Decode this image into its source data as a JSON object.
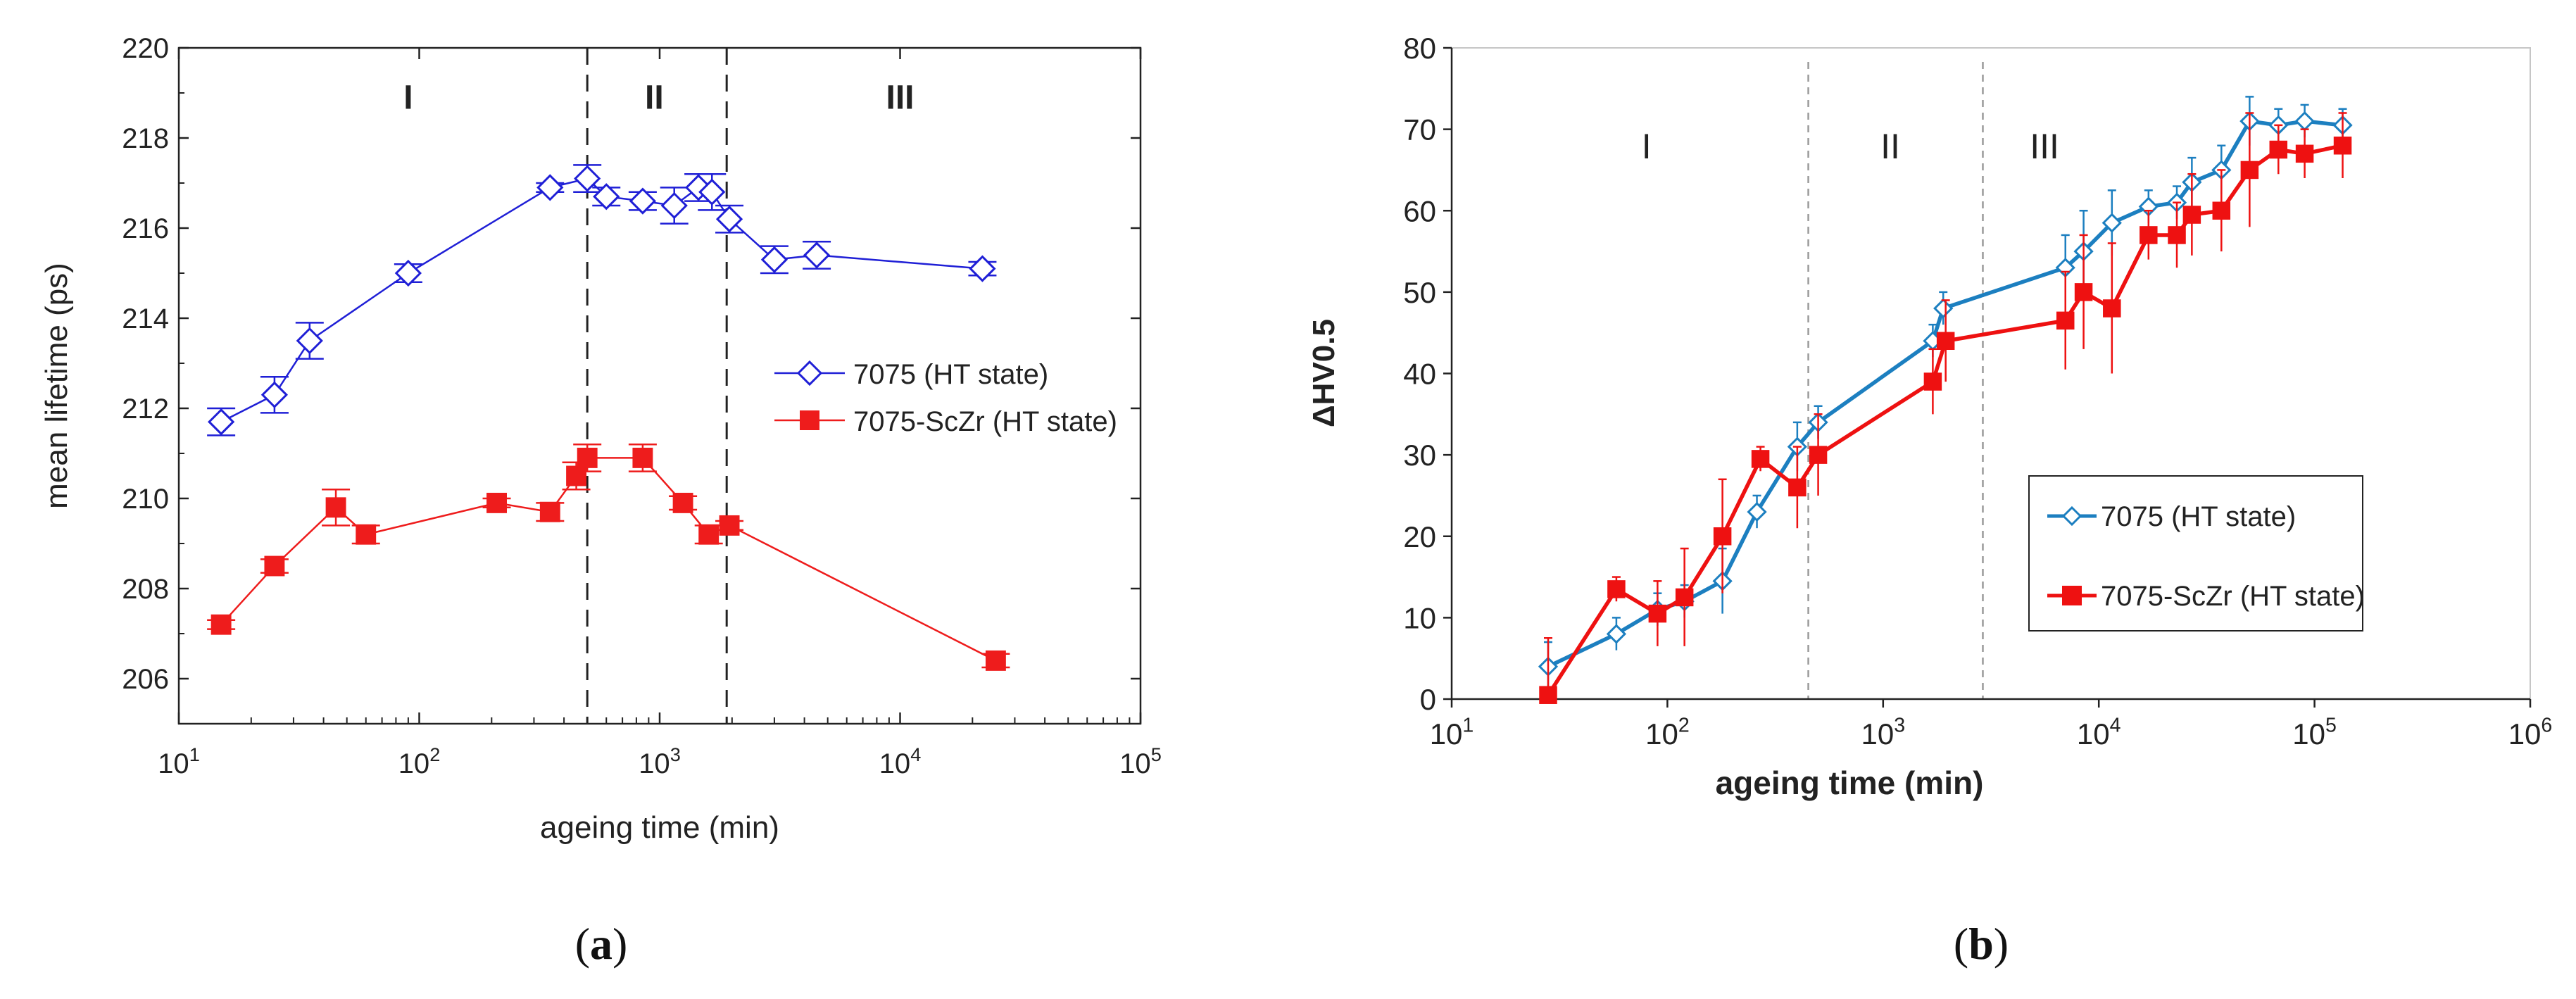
{
  "chart_data": [
    {
      "type": "line",
      "panel_label": "(a)",
      "panel_letter": "a",
      "xlabel": "ageing time (min)",
      "ylabel": "mean lifetime (ps)",
      "xscale": "log",
      "xlim": [
        10,
        100000
      ],
      "ylim": [
        205,
        220
      ],
      "yticks": [
        206,
        208,
        210,
        212,
        214,
        216,
        218,
        220
      ],
      "xticks": [
        {
          "base": "10",
          "exp": "1",
          "value": 10
        },
        {
          "base": "10",
          "exp": "2",
          "value": 100
        },
        {
          "base": "10",
          "exp": "3",
          "value": 1000
        },
        {
          "base": "10",
          "exp": "4",
          "value": 10000
        },
        {
          "base": "10",
          "exp": "5",
          "value": 100000
        }
      ],
      "region_lines": [
        500,
        1900
      ],
      "regions": [
        {
          "label": "I",
          "x": 90,
          "y": 218.9
        },
        {
          "label": "II",
          "x": 950,
          "y": 218.9
        },
        {
          "label": "III",
          "x": 10000,
          "y": 218.9
        }
      ],
      "legend_position": "right-middle",
      "series": [
        {
          "name": "7075 (HT state)",
          "color": "#1f1fd6",
          "marker": "diamond-open",
          "x": [
            15,
            25,
            35,
            90,
            350,
            500,
            600,
            850,
            1150,
            1450,
            1650,
            1950,
            3000,
            4500,
            22000
          ],
          "y": [
            211.7,
            212.3,
            213.5,
            215.0,
            216.9,
            217.1,
            216.7,
            216.6,
            216.5,
            216.9,
            216.8,
            216.2,
            215.3,
            215.4,
            215.1
          ],
          "err": [
            0.3,
            0.4,
            0.4,
            0.2,
            0.1,
            0.3,
            0.2,
            0.2,
            0.4,
            0.3,
            0.4,
            0.3,
            0.3,
            0.3,
            0.15
          ]
        },
        {
          "name": "7075-ScZr (HT state)",
          "color": "#ee1c1c",
          "marker": "square-filled",
          "x": [
            15,
            25,
            45,
            60,
            210,
            350,
            450,
            500,
            850,
            1250,
            1600,
            1950,
            25000
          ],
          "y": [
            207.2,
            208.5,
            209.8,
            209.2,
            209.9,
            209.7,
            210.5,
            210.9,
            210.9,
            209.9,
            209.2,
            209.4,
            206.4
          ],
          "err": [
            0.1,
            0.15,
            0.4,
            0.2,
            0.1,
            0.2,
            0.3,
            0.3,
            0.3,
            0.15,
            0.2,
            0.1,
            0.15
          ]
        }
      ]
    },
    {
      "type": "line",
      "panel_label": "(b)",
      "panel_letter": "b",
      "xlabel": "ageing time (min)",
      "ylabel": "ΔHV0.5",
      "xscale": "log",
      "xlim": [
        10,
        1000000
      ],
      "ylim": [
        0,
        80
      ],
      "yticks": [
        0,
        10,
        20,
        30,
        40,
        50,
        60,
        70,
        80
      ],
      "xticks": [
        {
          "base": "10",
          "exp": "1",
          "value": 10
        },
        {
          "base": "10",
          "exp": "2",
          "value": 100
        },
        {
          "base": "10",
          "exp": "3",
          "value": 1000
        },
        {
          "base": "10",
          "exp": "4",
          "value": 10000
        },
        {
          "base": "10",
          "exp": "5",
          "value": 100000
        },
        {
          "base": "10",
          "exp": "6",
          "value": 1000000
        }
      ],
      "region_lines": [
        450,
        2900
      ],
      "regions": [
        {
          "label": "I",
          "x": 80,
          "y": 68
        },
        {
          "label": "II",
          "x": 1080,
          "y": 68
        },
        {
          "label": "III",
          "x": 5600,
          "y": 68
        }
      ],
      "legend_position": "lower-right",
      "series": [
        {
          "name": "7075 (HT state)",
          "color": "#1c7fc0",
          "marker": "diamond-open",
          "x": [
            28,
            58,
            90,
            120,
            180,
            260,
            400,
            500,
            1700,
            1900,
            7000,
            8500,
            11500,
            17000,
            23000,
            27000,
            37000,
            50000,
            68000,
            90000,
            135000
          ],
          "y": [
            4,
            8,
            11,
            12,
            14.5,
            23,
            31,
            34,
            44,
            48,
            53,
            55,
            58.5,
            60.5,
            61,
            63.5,
            65,
            71,
            70.5,
            71,
            70.5
          ],
          "err": [
            3,
            2,
            2,
            2,
            4,
            2,
            3,
            2,
            2,
            2,
            4,
            5,
            4,
            2,
            2,
            3,
            3,
            3,
            2,
            2,
            2
          ]
        },
        {
          "name": "7075-ScZr (HT state)",
          "color": "#ee1111",
          "marker": "square-filled",
          "x": [
            28,
            58,
            90,
            120,
            180,
            270,
            400,
            500,
            1700,
            1950,
            7000,
            8500,
            11500,
            17000,
            23000,
            27000,
            37000,
            50000,
            68000,
            90000,
            135000
          ],
          "y": [
            0.5,
            13.5,
            10.5,
            12.5,
            20,
            29.5,
            26,
            30,
            39,
            44,
            46.5,
            50,
            48,
            57,
            57,
            59.5,
            60,
            65,
            67.5,
            67,
            68
          ],
          "err": [
            7,
            1.5,
            4,
            6,
            7,
            1.5,
            5,
            5,
            4,
            5,
            6,
            7,
            8,
            3,
            4,
            5,
            5,
            7,
            3,
            3,
            4
          ]
        }
      ]
    }
  ]
}
